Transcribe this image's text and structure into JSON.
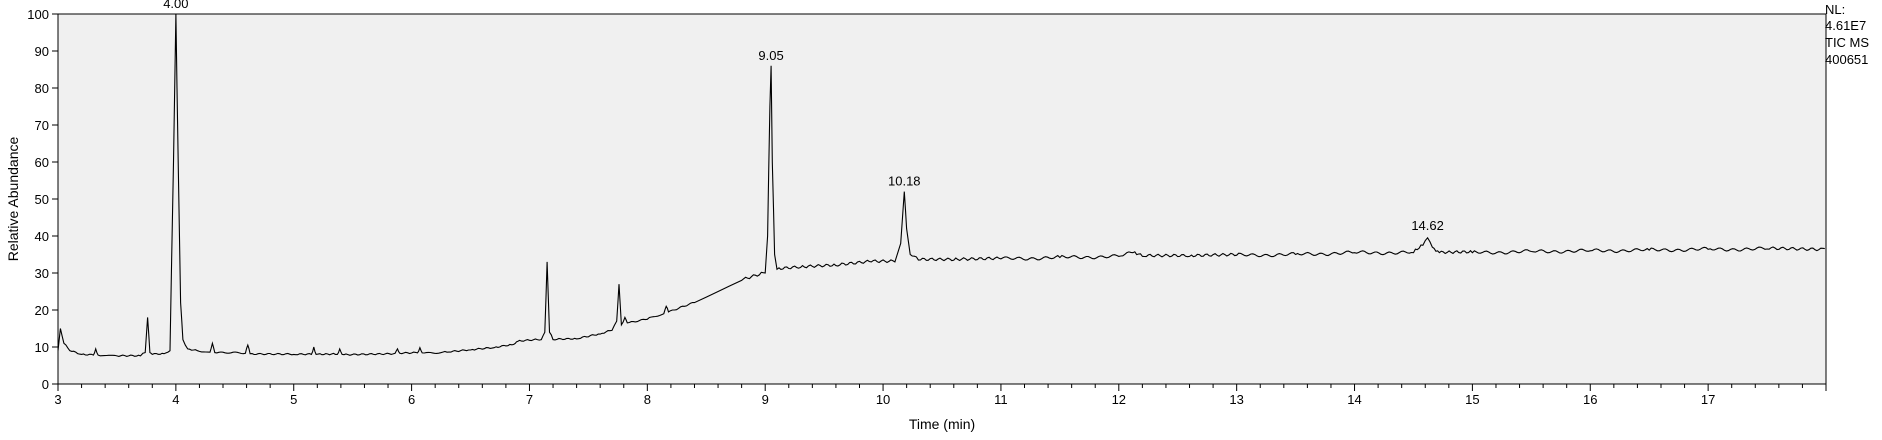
{
  "chart_data": {
    "type": "line",
    "xlabel": "Time (min)",
    "ylabel": "Relative Abundance",
    "xlim": [
      3,
      18
    ],
    "ylim": [
      0,
      100
    ],
    "x_ticks": [
      3,
      4,
      5,
      6,
      7,
      8,
      9,
      10,
      11,
      12,
      13,
      14,
      15,
      16,
      17
    ],
    "y_ticks": [
      0,
      10,
      20,
      30,
      40,
      50,
      60,
      70,
      80,
      90,
      100
    ],
    "grid": false,
    "background_color": "#f0f0f0",
    "line_color": "#000000",
    "peak_labels": [
      {
        "x": 4.0,
        "y": 100,
        "label": "4.00"
      },
      {
        "x": 9.05,
        "y": 86,
        "label": "9.05"
      },
      {
        "x": 10.18,
        "y": 52,
        "label": "10.18"
      },
      {
        "x": 14.62,
        "y": 40,
        "label": "14.62"
      }
    ],
    "series": [
      {
        "points": [
          [
            3.0,
            9.0
          ],
          [
            3.02,
            15.0
          ],
          [
            3.05,
            11.0
          ],
          [
            3.1,
            9.0
          ],
          [
            3.2,
            8.0
          ],
          [
            3.3,
            7.8
          ],
          [
            3.32,
            9.5
          ],
          [
            3.34,
            7.8
          ],
          [
            3.5,
            7.6
          ],
          [
            3.7,
            7.6
          ],
          [
            3.74,
            8.5
          ],
          [
            3.76,
            18.0
          ],
          [
            3.78,
            8.5
          ],
          [
            3.8,
            8.0
          ],
          [
            3.9,
            8.2
          ],
          [
            3.95,
            9.0
          ],
          [
            3.98,
            60.0
          ],
          [
            4.0,
            100.0
          ],
          [
            4.02,
            60.0
          ],
          [
            4.04,
            22.0
          ],
          [
            4.06,
            12.0
          ],
          [
            4.1,
            9.5
          ],
          [
            4.2,
            8.8
          ],
          [
            4.29,
            8.6
          ],
          [
            4.31,
            11.0
          ],
          [
            4.33,
            8.5
          ],
          [
            4.59,
            8.3
          ],
          [
            4.61,
            10.5
          ],
          [
            4.63,
            8.2
          ],
          [
            5.0,
            8.0
          ],
          [
            5.15,
            8.0
          ],
          [
            5.17,
            10.0
          ],
          [
            5.19,
            8.0
          ],
          [
            5.37,
            8.0
          ],
          [
            5.39,
            9.5
          ],
          [
            5.41,
            8.0
          ],
          [
            5.86,
            8.3
          ],
          [
            5.88,
            9.5
          ],
          [
            5.9,
            8.3
          ],
          [
            6.05,
            8.4
          ],
          [
            6.07,
            9.8
          ],
          [
            6.09,
            8.4
          ],
          [
            6.3,
            8.6
          ],
          [
            6.5,
            9.2
          ],
          [
            6.7,
            9.8
          ],
          [
            6.85,
            10.6
          ],
          [
            6.88,
            11.0
          ],
          [
            6.9,
            11.5
          ],
          [
            7.0,
            11.8
          ],
          [
            7.1,
            12.0
          ],
          [
            7.13,
            14.0
          ],
          [
            7.15,
            33.0
          ],
          [
            7.17,
            14.0
          ],
          [
            7.2,
            12.0
          ],
          [
            7.4,
            12.2
          ],
          [
            7.6,
            13.5
          ],
          [
            7.7,
            14.5
          ],
          [
            7.74,
            17.0
          ],
          [
            7.76,
            27.0
          ],
          [
            7.78,
            16.0
          ],
          [
            7.81,
            18.0
          ],
          [
            7.83,
            16.5
          ],
          [
            8.0,
            17.5
          ],
          [
            8.14,
            19.0
          ],
          [
            8.16,
            21.0
          ],
          [
            8.18,
            19.5
          ],
          [
            8.4,
            22.0
          ],
          [
            8.6,
            25.0
          ],
          [
            8.8,
            28.0
          ],
          [
            8.95,
            29.5
          ],
          [
            9.0,
            30.0
          ],
          [
            9.02,
            40.0
          ],
          [
            9.04,
            75.0
          ],
          [
            9.05,
            86.0
          ],
          [
            9.06,
            60.0
          ],
          [
            9.08,
            35.0
          ],
          [
            9.1,
            31.0
          ],
          [
            9.3,
            31.5
          ],
          [
            9.6,
            32.0
          ],
          [
            9.9,
            33.0
          ],
          [
            10.1,
            33.0
          ],
          [
            10.15,
            38.0
          ],
          [
            10.18,
            52.0
          ],
          [
            10.2,
            42.0
          ],
          [
            10.23,
            35.0
          ],
          [
            10.3,
            33.5
          ],
          [
            10.6,
            33.5
          ],
          [
            11.0,
            33.8
          ],
          [
            11.5,
            34.2
          ],
          [
            12.0,
            34.5
          ],
          [
            12.12,
            35.5
          ],
          [
            12.2,
            34.5
          ],
          [
            12.6,
            34.5
          ],
          [
            13.0,
            34.8
          ],
          [
            13.5,
            35.0
          ],
          [
            14.0,
            35.5
          ],
          [
            14.5,
            35.5
          ],
          [
            14.58,
            37.5
          ],
          [
            14.62,
            39.5
          ],
          [
            14.66,
            37.0
          ],
          [
            14.72,
            35.5
          ],
          [
            15.0,
            35.5
          ],
          [
            15.5,
            35.8
          ],
          [
            16.0,
            36.0
          ],
          [
            16.5,
            36.2
          ],
          [
            17.0,
            36.4
          ],
          [
            17.5,
            36.5
          ],
          [
            17.99,
            36.6
          ]
        ]
      }
    ]
  },
  "side_info": {
    "nl_label": "NL:",
    "nl_value": "4.61E7",
    "scan_type": "TIC  MS",
    "file_id": "400651"
  }
}
